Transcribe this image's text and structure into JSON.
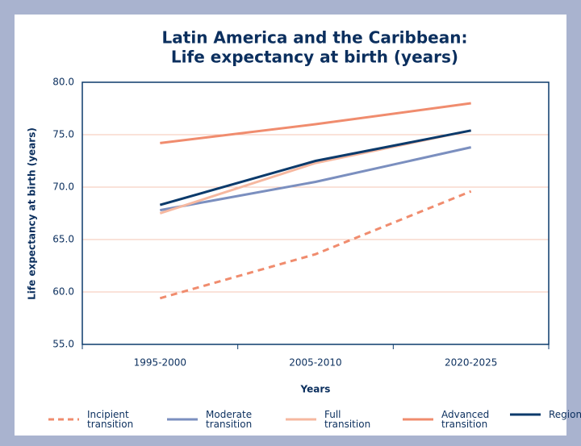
{
  "chart_data": {
    "type": "line",
    "title": [
      "Latin America and the Caribbean:",
      "Life expectancy at birth (years)"
    ],
    "x_label": "Years",
    "y_label": "Life expectancy at birth (years)",
    "categories": [
      "1995-2000",
      "2005-2010",
      "2020-2025"
    ],
    "series": [
      {
        "name": "Incipient transition",
        "color": "#f08c6e",
        "dashed": true,
        "values": [
          59.4,
          63.6,
          69.6
        ]
      },
      {
        "name": "Moderate transition",
        "color": "#7b8fbf",
        "values": [
          67.8,
          70.5,
          73.8
        ]
      },
      {
        "name": "Full transition",
        "color": "#f6b8a0",
        "values": [
          67.5,
          72.3,
          75.4
        ]
      },
      {
        "name": "Advanced transition",
        "color": "#f08c6e",
        "values": [
          74.2,
          76.0,
          78.0
        ]
      },
      {
        "name": "Region",
        "color": "#0b3a6b",
        "values": [
          68.3,
          72.5,
          75.4
        ]
      }
    ],
    "ylim": [
      55,
      80
    ],
    "yticks": [
      {
        "value": 55,
        "label": "55.0"
      },
      {
        "value": 60,
        "label": "60.0"
      },
      {
        "value": 65,
        "label": "65.0"
      },
      {
        "value": 70,
        "label": "70.0"
      },
      {
        "value": 75,
        "label": "75.0"
      },
      {
        "value": 80,
        "label": "80.0"
      }
    ],
    "grid": true,
    "legend": "bottom"
  }
}
